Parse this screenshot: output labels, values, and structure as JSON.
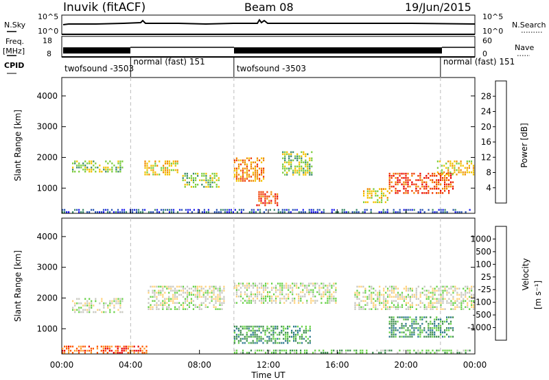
{
  "header": {
    "station": "Inuvik (fitACF)",
    "beam": "Beam 08",
    "date": "19/Jun/2015"
  },
  "top_panels": {
    "nsky_label": "N.Sky",
    "nsky_ticks": [
      "10^5",
      "10^0"
    ],
    "nsearch_label": "N.Search",
    "nsearch_ticks": [
      "10^5",
      "10^0"
    ],
    "freq_label": "Freq.",
    "freq_unit": "[MHz]",
    "freq_ticks": [
      "18",
      "8"
    ],
    "nave_label": "Nave",
    "nave_ticks": [
      "60",
      "0"
    ],
    "cpid_label": "CPID",
    "cpid_segments": [
      {
        "name": "twofsound -3503",
        "start_hr": 0,
        "end_hr": 4
      },
      {
        "name": "normal (fast) 151",
        "start_hr": 4,
        "end_hr": 10
      },
      {
        "name": "twofsound -3503",
        "start_hr": 10,
        "end_hr": 22
      },
      {
        "name": "normal (fast) 151",
        "start_hr": 22,
        "end_hr": 24
      }
    ]
  },
  "chart_data": [
    {
      "type": "heatmap",
      "parameter": "power",
      "ylabel": "Slant Range [km]",
      "colorbar_label": "Power [dB]",
      "ylim": [
        180,
        4600
      ],
      "yticks": [
        1000,
        2000,
        3000,
        4000
      ],
      "xlim_hr": [
        0,
        24
      ],
      "colorbar": {
        "ticks": [
          "28",
          "24",
          "20",
          "16",
          "12",
          "8",
          "4"
        ],
        "colors": [
          "#1f1ff0",
          "#2a55b5",
          "#3c8a6d",
          "#7ccd3e",
          "#f2c200",
          "#f08a00",
          "#f03a00",
          "#e80000"
        ]
      },
      "echo_regions": [
        {
          "t0": 0.0,
          "t1": 23.9,
          "r0": 180,
          "r1": 320,
          "level": 1
        },
        {
          "t0": 0.6,
          "t1": 3.6,
          "r0": 1500,
          "r1": 1900,
          "level": 3
        },
        {
          "t0": 4.8,
          "t1": 6.8,
          "r0": 1400,
          "r1": 1900,
          "level": 4
        },
        {
          "t0": 7.0,
          "t1": 9.2,
          "r0": 1000,
          "r1": 1500,
          "level": 3
        },
        {
          "t0": 10.0,
          "t1": 11.8,
          "r0": 1200,
          "r1": 2000,
          "level": 5
        },
        {
          "t0": 11.3,
          "t1": 12.6,
          "r0": 400,
          "r1": 900,
          "level": 6
        },
        {
          "t0": 12.8,
          "t1": 14.6,
          "r0": 1400,
          "r1": 2200,
          "level": 3
        },
        {
          "t0": 17.5,
          "t1": 19.0,
          "r0": 500,
          "r1": 1000,
          "level": 4
        },
        {
          "t0": 19.0,
          "t1": 22.8,
          "r0": 800,
          "r1": 1500,
          "level": 6
        },
        {
          "t0": 21.8,
          "t1": 24.0,
          "r0": 1400,
          "r1": 1900,
          "level": 4
        }
      ]
    },
    {
      "type": "heatmap",
      "parameter": "velocity",
      "ylabel": "Slant Range [km]",
      "colorbar_label": "Velocity",
      "colorbar_unit": "[m s⁻¹]",
      "ylim": [
        180,
        4600
      ],
      "yticks": [
        1000,
        2000,
        3000,
        4000
      ],
      "xlim_hr": [
        0,
        24
      ],
      "xlabel": "Time UT",
      "xticks": [
        "00:00",
        "04:00",
        "08:00",
        "12:00",
        "16:00",
        "20:00",
        "00:00"
      ],
      "colorbar": {
        "ticks": [
          "1000",
          "500",
          "100",
          "25",
          "-25",
          "-100",
          "-500",
          "-1000"
        ],
        "colors": [
          "#2a4fc4",
          "#2f7a8f",
          "#3f8f4f",
          "#6ad24a",
          "#c8c8c0",
          "#ffd27a",
          "#ff9a2a",
          "#ff5a00",
          "#e80000"
        ]
      },
      "echo_regions": [
        {
          "t0": 0.0,
          "t1": 5.0,
          "r0": 180,
          "r1": 450,
          "level": 7
        },
        {
          "t0": 10.0,
          "t1": 23.9,
          "r0": 180,
          "r1": 320,
          "level": 3
        },
        {
          "t0": 0.6,
          "t1": 3.6,
          "r0": 1500,
          "r1": 2000,
          "level": 4
        },
        {
          "t0": 5.0,
          "t1": 9.5,
          "r0": 1600,
          "r1": 2400,
          "level": 4
        },
        {
          "t0": 10.0,
          "t1": 16.0,
          "r0": 1800,
          "r1": 2500,
          "level": 4
        },
        {
          "t0": 10.0,
          "t1": 14.5,
          "r0": 500,
          "r1": 1100,
          "level": 2
        },
        {
          "t0": 19.0,
          "t1": 22.8,
          "r0": 700,
          "r1": 1400,
          "level": 2
        },
        {
          "t0": 17.0,
          "t1": 24.0,
          "r0": 1600,
          "r1": 2400,
          "level": 4
        }
      ]
    }
  ]
}
